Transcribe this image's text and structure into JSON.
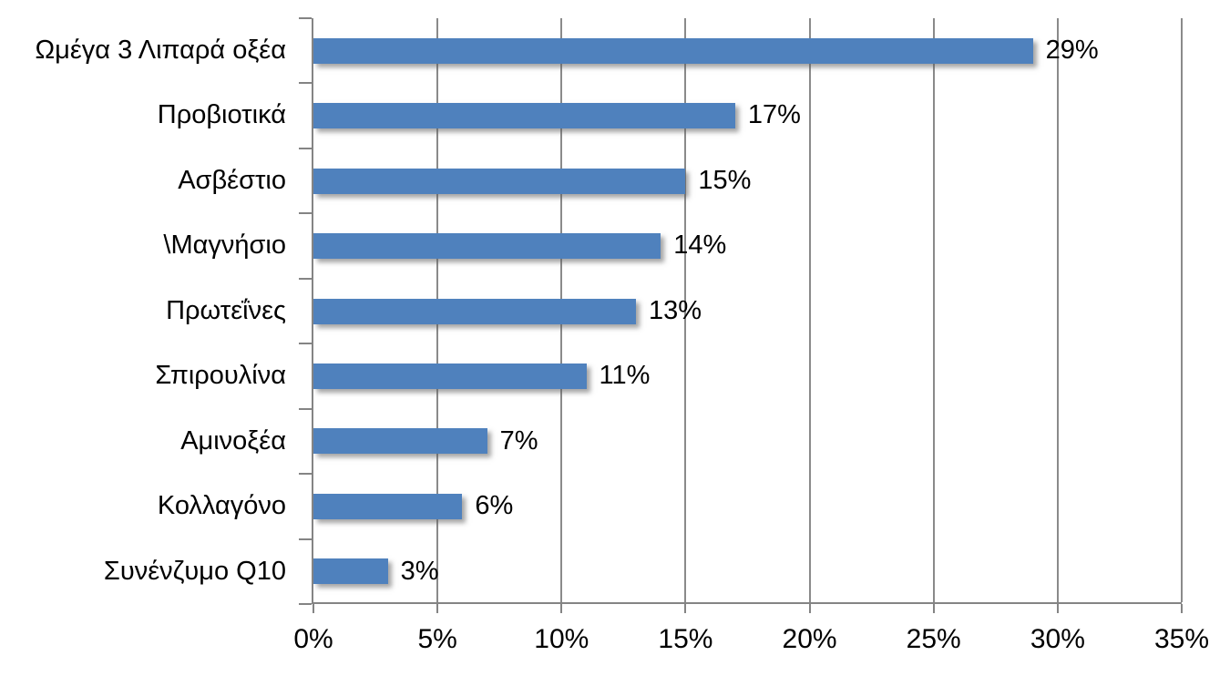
{
  "chart_data": {
    "type": "bar",
    "orientation": "horizontal",
    "title": "",
    "xlabel": "",
    "ylabel": "",
    "legend": "none",
    "grid": "vertical",
    "xlim": [
      0,
      35
    ],
    "categories": [
      "Ωμέγα 3 Λιπαρά οξέα",
      "Προβιοτικά",
      "Ασβέστιο",
      "\\Μαγνήσιο",
      "Πρωτεΐνες",
      "Σπιρουλίνα",
      "Αμινοξέα",
      "Κολλαγόνο",
      "Συνένζυμο Q10"
    ],
    "values": [
      29,
      17,
      15,
      14,
      13,
      11,
      7,
      6,
      3
    ],
    "data_labels": [
      "29%",
      "17%",
      "15%",
      "14%",
      "13%",
      "11%",
      "7%",
      "6%",
      "3%"
    ],
    "x_tick_values": [
      0,
      5,
      10,
      15,
      20,
      25,
      30,
      35
    ],
    "x_ticks": [
      "0%",
      "5%",
      "10%",
      "15%",
      "20%",
      "25%",
      "30%",
      "35%"
    ],
    "colors": {
      "bar": "#4f81bd",
      "gridline": "#8a8a8a",
      "axis": "#848484",
      "text": "#000000",
      "background": "#ffffff"
    }
  }
}
